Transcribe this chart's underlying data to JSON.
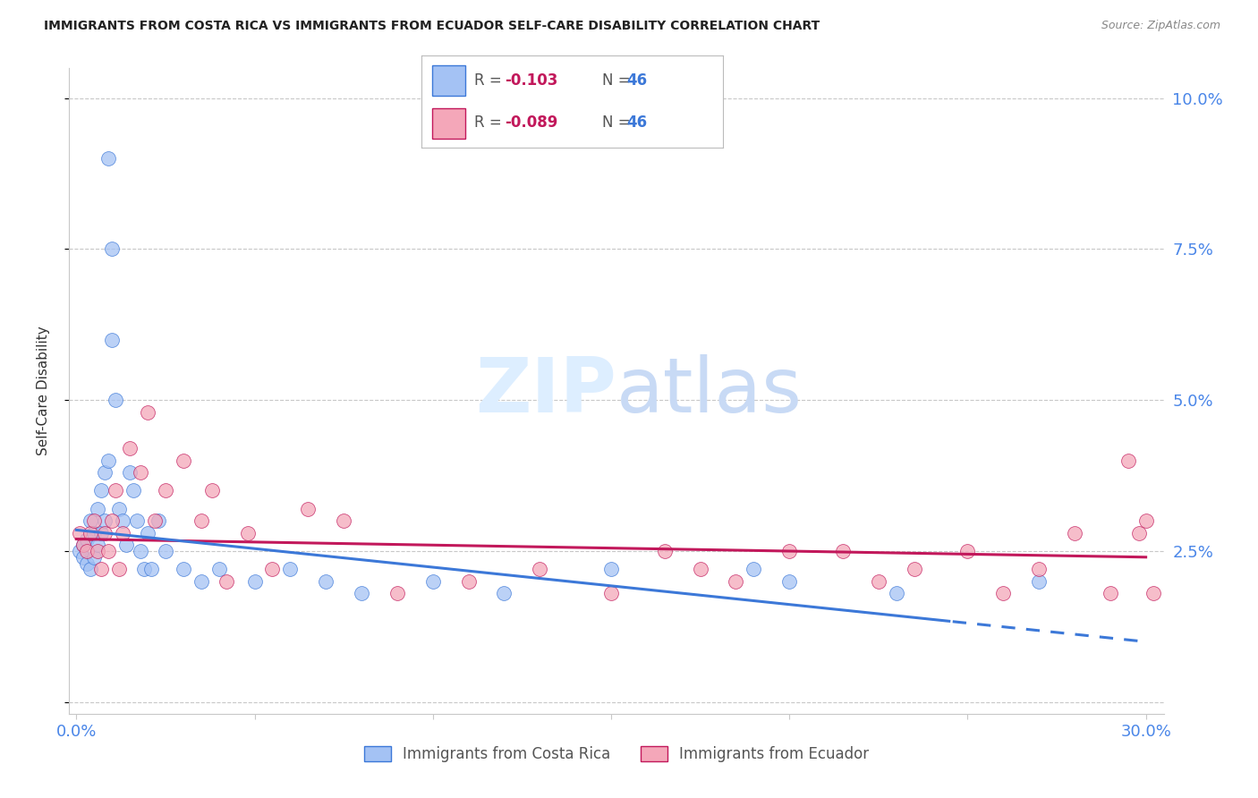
{
  "title": "IMMIGRANTS FROM COSTA RICA VS IMMIGRANTS FROM ECUADOR SELF-CARE DISABILITY CORRELATION CHART",
  "source": "Source: ZipAtlas.com",
  "ylabel": "Self-Care Disability",
  "ytick_vals": [
    0.0,
    0.025,
    0.05,
    0.075,
    0.1
  ],
  "ytick_labels": [
    "",
    "2.5%",
    "5.0%",
    "7.5%",
    "10.0%"
  ],
  "xtick_vals": [
    0.0,
    0.05,
    0.1,
    0.15,
    0.2,
    0.25,
    0.3
  ],
  "xtick_labels": [
    "0.0%",
    "",
    "",
    "",
    "",
    "",
    "30.0%"
  ],
  "xlim": [
    -0.002,
    0.305
  ],
  "ylim": [
    -0.002,
    0.105
  ],
  "legend_r1": "-0.103",
  "legend_n1": "46",
  "legend_r2": "-0.089",
  "legend_n2": "46",
  "color_blue": "#a4c2f4",
  "color_pink": "#f4a7b9",
  "color_line_blue": "#3c78d8",
  "color_line_pink": "#c2185b",
  "color_axis_text": "#4a86e8",
  "background_color": "#ffffff",
  "grid_color": "#c8c8c8",
  "watermark_color": "#ddeeff",
  "cr_x": [
    0.001,
    0.002,
    0.002,
    0.003,
    0.003,
    0.004,
    0.004,
    0.005,
    0.005,
    0.006,
    0.006,
    0.007,
    0.007,
    0.008,
    0.008,
    0.009,
    0.009,
    0.01,
    0.01,
    0.011,
    0.012,
    0.013,
    0.014,
    0.015,
    0.016,
    0.017,
    0.018,
    0.019,
    0.02,
    0.021,
    0.023,
    0.025,
    0.03,
    0.035,
    0.04,
    0.05,
    0.06,
    0.07,
    0.08,
    0.1,
    0.12,
    0.15,
    0.19,
    0.2,
    0.23,
    0.27
  ],
  "cr_y": [
    0.025,
    0.026,
    0.024,
    0.027,
    0.023,
    0.03,
    0.022,
    0.028,
    0.024,
    0.032,
    0.026,
    0.035,
    0.028,
    0.038,
    0.03,
    0.04,
    0.09,
    0.075,
    0.06,
    0.05,
    0.032,
    0.03,
    0.026,
    0.038,
    0.035,
    0.03,
    0.025,
    0.022,
    0.028,
    0.022,
    0.03,
    0.025,
    0.022,
    0.02,
    0.022,
    0.02,
    0.022,
    0.02,
    0.018,
    0.02,
    0.018,
    0.022,
    0.022,
    0.02,
    0.018,
    0.02
  ],
  "ec_x": [
    0.001,
    0.002,
    0.003,
    0.004,
    0.005,
    0.006,
    0.007,
    0.008,
    0.009,
    0.01,
    0.011,
    0.012,
    0.013,
    0.015,
    0.018,
    0.02,
    0.022,
    0.025,
    0.03,
    0.035,
    0.038,
    0.042,
    0.048,
    0.055,
    0.065,
    0.075,
    0.09,
    0.11,
    0.13,
    0.15,
    0.165,
    0.175,
    0.185,
    0.2,
    0.215,
    0.225,
    0.235,
    0.25,
    0.26,
    0.27,
    0.28,
    0.29,
    0.295,
    0.298,
    0.3,
    0.302
  ],
  "ec_y": [
    0.028,
    0.026,
    0.025,
    0.028,
    0.03,
    0.025,
    0.022,
    0.028,
    0.025,
    0.03,
    0.035,
    0.022,
    0.028,
    0.042,
    0.038,
    0.048,
    0.03,
    0.035,
    0.04,
    0.03,
    0.035,
    0.02,
    0.028,
    0.022,
    0.032,
    0.03,
    0.018,
    0.02,
    0.022,
    0.018,
    0.025,
    0.022,
    0.02,
    0.025,
    0.025,
    0.02,
    0.022,
    0.025,
    0.018,
    0.022,
    0.028,
    0.018,
    0.04,
    0.028,
    0.03,
    0.018
  ],
  "cr_line_x0": 0.0,
  "cr_line_y0": 0.0285,
  "cr_line_x1": 0.3,
  "cr_line_y1": 0.01,
  "cr_line_solid_end": 0.245,
  "ec_line_x0": 0.0,
  "ec_line_y0": 0.027,
  "ec_line_x1": 0.3,
  "ec_line_y1": 0.024
}
